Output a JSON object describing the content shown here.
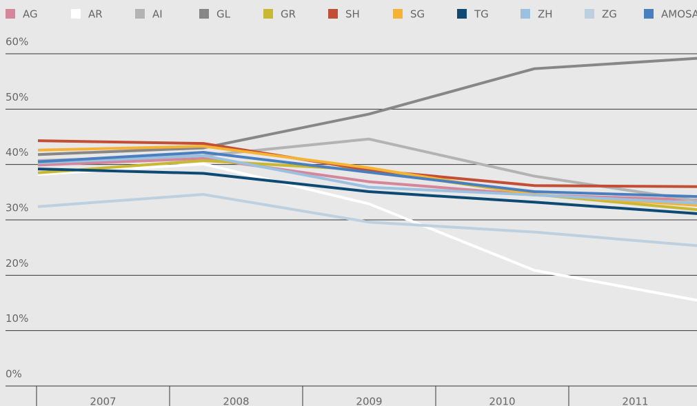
{
  "chart_data": {
    "type": "line",
    "categories": [
      "2007",
      "2008",
      "2009",
      "2010",
      "2011"
    ],
    "series": [
      {
        "name": "AG",
        "color": "#d4879b",
        "values": [
          39.9,
          41.1,
          36.9,
          34.5,
          33.6
        ]
      },
      {
        "name": "AR",
        "color": "#ffffff",
        "values": [
          38.2,
          40.1,
          32.9,
          20.9,
          15.4
        ]
      },
      {
        "name": "AI",
        "color": "#b3b3b3",
        "values": [
          40.7,
          41.6,
          44.6,
          37.9,
          33.4
        ]
      },
      {
        "name": "GL",
        "color": "#878787",
        "values": [
          41.8,
          43.0,
          49.1,
          57.3,
          59.2
        ]
      },
      {
        "name": "GR",
        "color": "#c9b832",
        "values": [
          38.5,
          40.7,
          39.0,
          34.6,
          31.8
        ]
      },
      {
        "name": "SH",
        "color": "#c24e36",
        "values": [
          44.3,
          43.8,
          39.0,
          36.2,
          36.0
        ]
      },
      {
        "name": "SG",
        "color": "#f5b335",
        "values": [
          42.6,
          43.3,
          39.4,
          34.6,
          32.6
        ]
      },
      {
        "name": "TG",
        "color": "#0d4a73",
        "values": [
          39.2,
          38.4,
          35.1,
          33.2,
          31.1
        ]
      },
      {
        "name": "ZH",
        "color": "#9cc0df",
        "values": [
          40.3,
          41.6,
          35.9,
          34.5,
          33.0
        ]
      },
      {
        "name": "ZG",
        "color": "#bdd0e0",
        "values": [
          32.4,
          34.6,
          29.6,
          27.8,
          25.3
        ]
      },
      {
        "name": "AMOSA",
        "color": "#4a7fbf",
        "values": [
          40.5,
          42.2,
          38.6,
          35.1,
          34.2
        ]
      }
    ],
    "ylim": [
      0,
      60
    ],
    "yticks": [
      {
        "value": 0,
        "label": "0%"
      },
      {
        "value": 10,
        "label": "10%"
      },
      {
        "value": 20,
        "label": "20%"
      },
      {
        "value": 30,
        "label": "30%"
      },
      {
        "value": 40,
        "label": "40%"
      },
      {
        "value": 50,
        "label": "50%"
      },
      {
        "value": 60,
        "label": "60%"
      }
    ],
    "grid": true
  }
}
